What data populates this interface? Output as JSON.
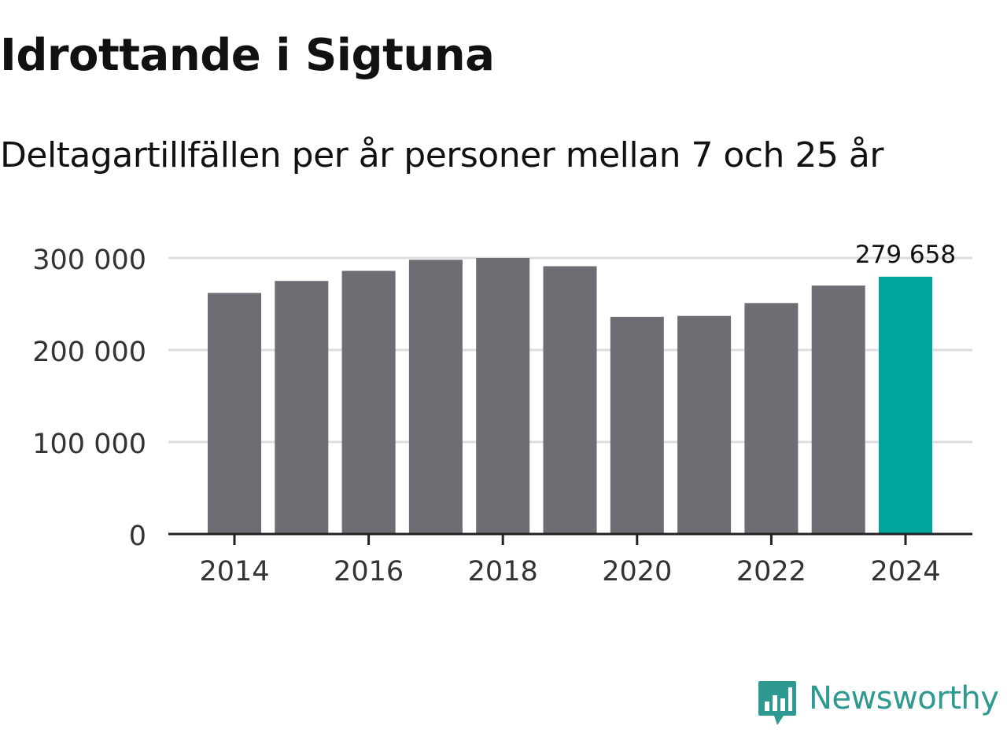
{
  "title": "Idrottande i Sigtuna",
  "subtitle": "Deltagartillfällen per år personer mellan 7 och 25 år",
  "brand": {
    "name": "Newsworthy",
    "color": "#2e9990",
    "icon": "newsworthy-logo-icon"
  },
  "colors": {
    "bar": "#6e6d73",
    "highlight": "#00a69c",
    "grid": "#dddddd",
    "axis": "#222222"
  },
  "chart_data": {
    "type": "bar",
    "title": "Idrottande i Sigtuna",
    "subtitle": "Deltagartillfällen per år personer mellan 7 och 25 år",
    "categories": [
      "2014",
      "2015",
      "2016",
      "2017",
      "2018",
      "2019",
      "2020",
      "2021",
      "2022",
      "2023",
      "2024"
    ],
    "values": [
      262000,
      275000,
      286000,
      298000,
      300000,
      291000,
      236000,
      237000,
      251000,
      270000,
      279658
    ],
    "highlight_index": 10,
    "highlight_label": "279 658",
    "ylim": [
      0,
      300000
    ],
    "yticks": [
      0,
      100000,
      200000,
      300000
    ],
    "ytick_labels": [
      "0",
      "100 000",
      "200 000",
      "300 000"
    ],
    "xticks": [
      "2014",
      "2016",
      "2018",
      "2020",
      "2022",
      "2024"
    ],
    "xlabel": "",
    "ylabel": "",
    "grid": true
  }
}
